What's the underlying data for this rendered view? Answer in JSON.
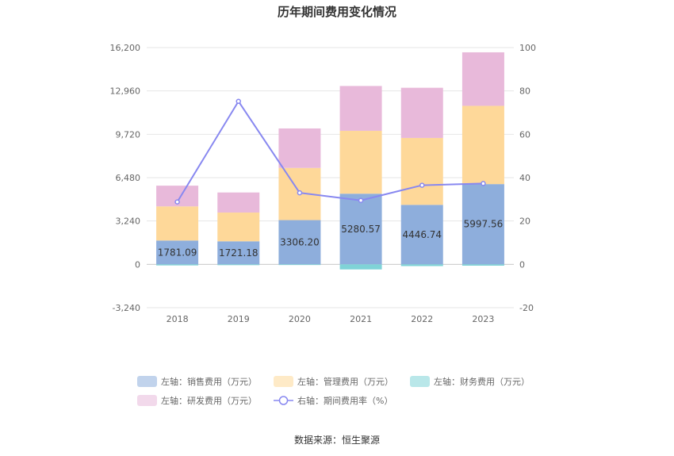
{
  "chart_data": {
    "type": "bar",
    "title": "历年期间费用变化情况",
    "categories": [
      "2018",
      "2019",
      "2020",
      "2021",
      "2022",
      "2023"
    ],
    "left_axis": {
      "ticks": [
        "16,200",
        "12,960",
        "9,720",
        "6,480",
        "3,240",
        "0",
        "-3,240"
      ],
      "range": [
        -3240,
        16200
      ]
    },
    "right_axis": {
      "ticks": [
        "100",
        "80",
        "60",
        "40",
        "20",
        "0",
        "-20"
      ],
      "range": [
        -20,
        100
      ]
    },
    "series": [
      {
        "name": "左轴：销售费用（万元）",
        "type": "stacked-bar",
        "axis": "left",
        "color": "#8eaedc",
        "values": [
          1781.09,
          1721.18,
          3306.2,
          5280.57,
          4446.74,
          5997.56
        ],
        "labels": [
          "1781.09",
          "1721.18",
          "3306.20",
          "5280.57",
          "4446.74",
          "5997.56"
        ]
      },
      {
        "name": "左轴：管理费用（万元）",
        "type": "stacked-bar",
        "axis": "left",
        "color": "#fed899",
        "values": [
          2550,
          2150,
          3900,
          4700,
          5000,
          5850
        ]
      },
      {
        "name": "左轴：财务费用（万元）",
        "type": "stacked-bar",
        "axis": "left",
        "color": "#7fd3d7",
        "values": [
          -80,
          -60,
          -50,
          -380,
          -130,
          -100
        ]
      },
      {
        "name": "左轴：研发费用（万元）",
        "type": "stacked-bar",
        "axis": "left",
        "color": "#e8b9da",
        "values": [
          1550,
          1500,
          2950,
          3350,
          3750,
          4000
        ]
      },
      {
        "name": "右轴：期间费用率（%）",
        "type": "line",
        "axis": "right",
        "color": "#8888f0",
        "values": [
          28.8,
          75.2,
          33.0,
          29.5,
          36.5,
          37.3
        ]
      }
    ],
    "grid": true,
    "legend_position": "bottom"
  },
  "source": "数据来源：恒生聚源"
}
